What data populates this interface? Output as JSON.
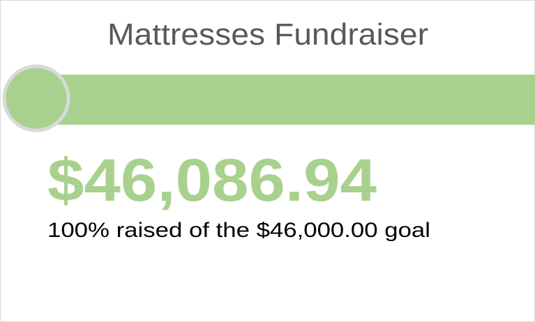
{
  "title": "Mattresses Fundraiser",
  "amount_raised": "$46,086.94",
  "caption": "100% raised of the $46,000.00 goal"
}
